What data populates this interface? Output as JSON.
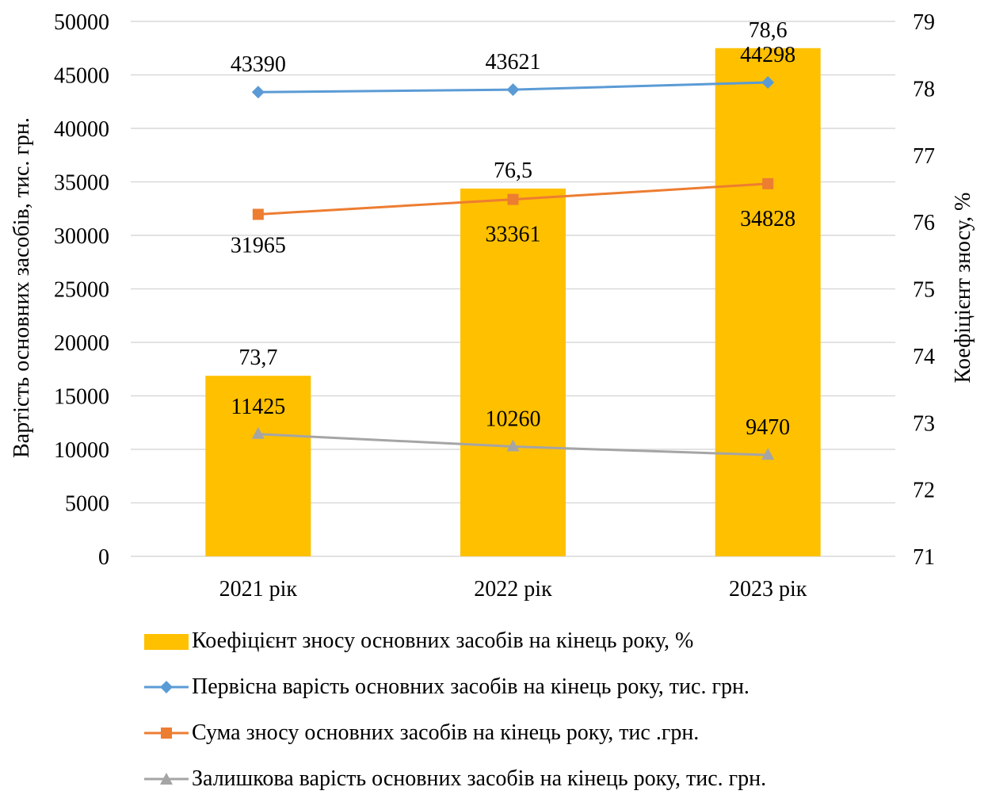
{
  "chart_data": {
    "type": "bar",
    "categories": [
      "2021 рік",
      "2022 рік",
      "2023 рік"
    ],
    "ylabel": "Вартість основних засобів, тис. грн.",
    "y2label": "Коефіцієнт зносу, %",
    "ylim": [
      0,
      50000
    ],
    "y_ticks": [
      "0",
      "5000",
      "10000",
      "15000",
      "20000",
      "25000",
      "30000",
      "35000",
      "40000",
      "45000",
      "50000"
    ],
    "y2lim": [
      71,
      79
    ],
    "y2_ticks": [
      "71",
      "72",
      "73",
      "74",
      "75",
      "76",
      "77",
      "78",
      "79"
    ],
    "grid": true,
    "legend_position": "bottom",
    "series": [
      {
        "name": "Коефіцієнт зносу основних засобів на кінець року, %",
        "type": "bar",
        "axis": "right",
        "color": "#FFC000",
        "values": [
          73.7,
          76.5,
          78.6
        ],
        "labels": [
          "73,7",
          "76,5",
          "78,6"
        ]
      },
      {
        "name": "Первісна варість основних засобів на кінець року, тис. грн.",
        "type": "line",
        "axis": "left",
        "color": "#5B9BD5",
        "marker": "diamond",
        "values": [
          43390,
          43621,
          44298
        ],
        "labels": [
          "43390",
          "43621",
          "44298"
        ]
      },
      {
        "name": "Сума зносу основних засобів на кінець року, тис .грн.",
        "type": "line",
        "axis": "left",
        "color": "#ED7D31",
        "marker": "square",
        "values": [
          31965,
          33361,
          34828
        ],
        "labels": [
          "31965",
          "33361",
          "34828"
        ]
      },
      {
        "name": "Залишкова варість основних засобів на кінець року, тис. грн.",
        "type": "line",
        "axis": "left",
        "color": "#A5A5A5",
        "marker": "triangle",
        "values": [
          11425,
          10260,
          9470
        ],
        "labels": [
          "11425",
          "10260",
          "9470"
        ]
      }
    ]
  }
}
